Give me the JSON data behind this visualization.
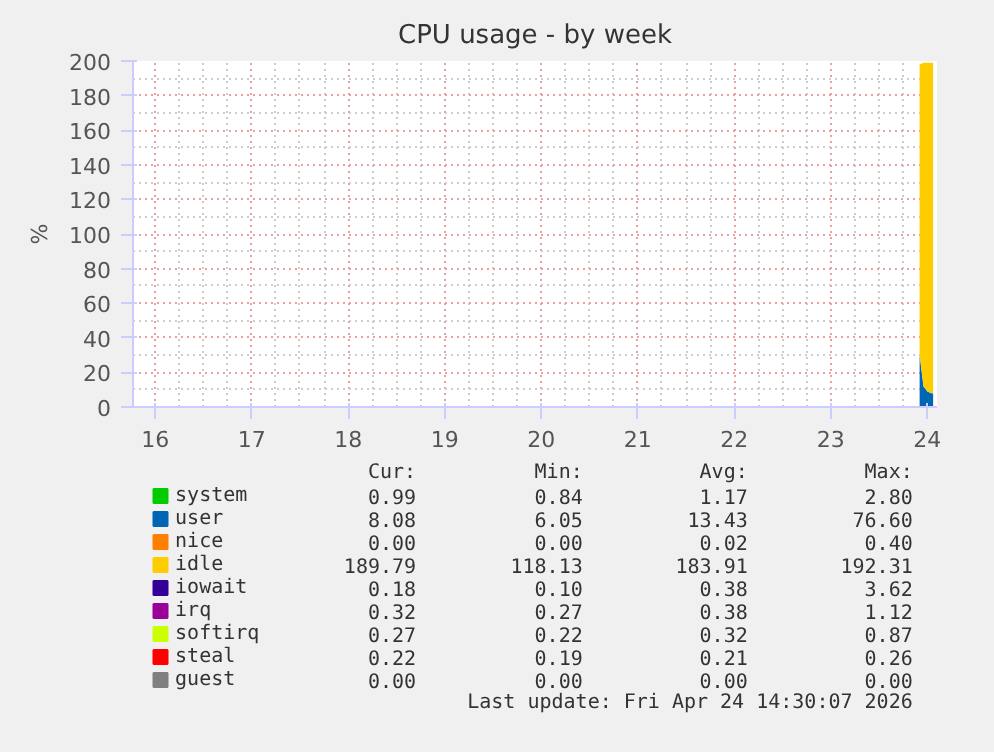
{
  "chart_data": {
    "type": "area",
    "stacked": true,
    "title": "CPU usage - by week",
    "ylabel": "%",
    "x": [
      23.92,
      23.96,
      24.0,
      24.04,
      24.06
    ],
    "xlim": [
      15.77,
      24.1
    ],
    "xticks": [
      16,
      17,
      18,
      19,
      20,
      21,
      22,
      23,
      24
    ],
    "ylim": [
      0,
      200
    ],
    "yticks": [
      0,
      20,
      40,
      60,
      80,
      100,
      120,
      140,
      160,
      180,
      200
    ],
    "grid": true,
    "legend": "bottom",
    "series": [
      {
        "name": "system",
        "color": "#00cc00",
        "values": [
          null,
          null,
          null,
          null,
          null
        ]
      },
      {
        "name": "user",
        "color": "#0066b3",
        "values": [
          30,
          12,
          9,
          8,
          8
        ]
      },
      {
        "name": "nice",
        "color": "#ff8000",
        "values": [
          null,
          null,
          null,
          null,
          null
        ]
      },
      {
        "name": "idle",
        "color": "#ffcc00",
        "values": [
          168,
          187,
          190,
          191,
          191
        ]
      },
      {
        "name": "iowait",
        "color": "#330099",
        "values": [
          null,
          null,
          null,
          null,
          null
        ]
      },
      {
        "name": "irq",
        "color": "#990099",
        "values": [
          null,
          null,
          null,
          null,
          null
        ]
      },
      {
        "name": "softirq",
        "color": "#ccff00",
        "values": [
          null,
          null,
          null,
          null,
          null
        ]
      },
      {
        "name": "steal",
        "color": "#ff0000",
        "values": [
          null,
          null,
          null,
          null,
          null
        ]
      },
      {
        "name": "guest",
        "color": "#808080",
        "values": [
          null,
          null,
          null,
          null,
          null
        ]
      }
    ],
    "annotations": [
      "Cur:",
      "Min:",
      "Avg:",
      "Max:",
      "0.99",
      "0.84",
      "1.17",
      "2.80",
      "8.08",
      "6.05",
      "13.43",
      "76.60",
      "0.00",
      "0.00",
      "0.02",
      "0.40",
      "189.79",
      "118.13",
      "183.91",
      "192.31",
      "0.18",
      "0.10",
      "0.38",
      "3.62",
      "0.32",
      "0.27",
      "0.38",
      "1.12",
      "0.27",
      "0.22",
      "0.32",
      "0.87",
      "0.22",
      "0.19",
      "0.21",
      "0.26",
      "0.00",
      "0.00",
      "0.00",
      "0.00",
      "Last update: Fri Apr 24 14:30:07 2026"
    ]
  }
}
